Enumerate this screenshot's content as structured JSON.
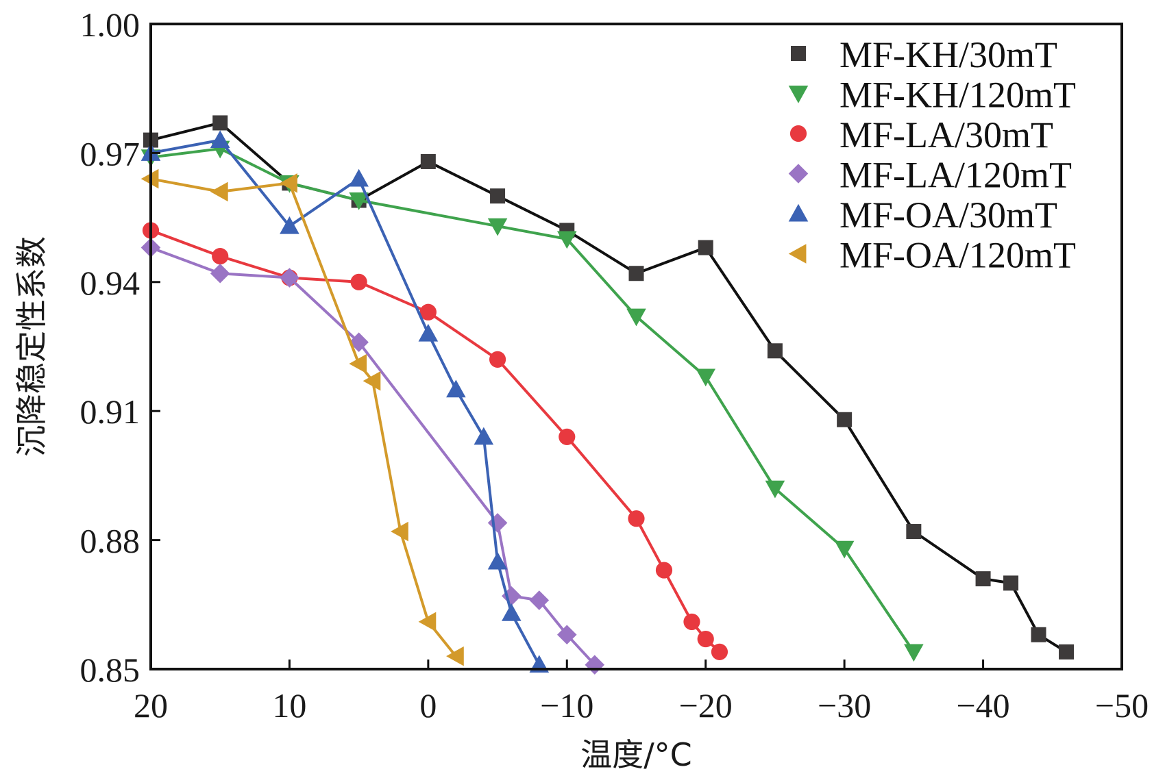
{
  "chart_data": {
    "type": "line",
    "title": "",
    "xlabel": "温度/°C",
    "ylabel": "沉降稳定性系数",
    "xlim": [
      20,
      -50
    ],
    "ylim": [
      0.85,
      1.0
    ],
    "x_ticks": [
      20,
      10,
      0,
      -10,
      -20,
      -30,
      -40,
      -50
    ],
    "x_tick_labels": [
      "20",
      "10",
      "0",
      "−10",
      "−20",
      "−30",
      "−40",
      "−50"
    ],
    "y_ticks": [
      0.85,
      0.88,
      0.91,
      0.94,
      0.97,
      1.0
    ],
    "y_tick_labels": [
      "0.85",
      "0.88",
      "0.91",
      "0.94",
      "0.97",
      "1.00"
    ],
    "grid": false,
    "legend_position": "top-right",
    "series": [
      {
        "name": "MF-KH/30mT",
        "color": "#3d3a3a",
        "line_color": "#111111",
        "marker": "square",
        "x": [
          20,
          15,
          10,
          5,
          0,
          -5,
          -10,
          -15,
          -20,
          -25,
          -30,
          -35,
          -40,
          -42,
          -44,
          -46
        ],
        "y": [
          0.973,
          0.977,
          0.963,
          0.959,
          0.968,
          0.96,
          0.952,
          0.942,
          0.948,
          0.924,
          0.908,
          0.882,
          0.871,
          0.87,
          0.858,
          0.854
        ]
      },
      {
        "name": "MF-KH/120mT",
        "color": "#3fa34d",
        "line_color": "#3fa34d",
        "marker": "triangle-down",
        "x": [
          20,
          15,
          10,
          5,
          -5,
          -10,
          -15,
          -20,
          -25,
          -30,
          -35
        ],
        "y": [
          0.969,
          0.971,
          0.963,
          0.959,
          0.953,
          0.95,
          0.932,
          0.918,
          0.892,
          0.878,
          0.854
        ]
      },
      {
        "name": "MF-LA/30mT",
        "color": "#e8393f",
        "line_color": "#e8393f",
        "marker": "circle",
        "x": [
          20,
          15,
          10,
          5,
          0,
          -5,
          -10,
          -15,
          -17,
          -19,
          -20,
          -21
        ],
        "y": [
          0.952,
          0.946,
          0.941,
          0.94,
          0.933,
          0.922,
          0.904,
          0.885,
          0.873,
          0.861,
          0.857,
          0.854
        ]
      },
      {
        "name": "MF-LA/120mT",
        "color": "#9a74c4",
        "line_color": "#9a74c4",
        "marker": "diamond",
        "x": [
          20,
          15,
          10,
          5,
          -5,
          -6,
          -8,
          -10,
          -12
        ],
        "y": [
          0.948,
          0.942,
          0.941,
          0.926,
          0.884,
          0.867,
          0.866,
          0.858,
          0.851
        ]
      },
      {
        "name": "MF-OA/30mT",
        "color": "#3b62b4",
        "line_color": "#3b62b4",
        "marker": "triangle-up",
        "x": [
          20,
          15,
          10,
          5,
          0,
          -2,
          -4,
          -5,
          -6,
          -8
        ],
        "y": [
          0.97,
          0.973,
          0.953,
          0.964,
          0.928,
          0.915,
          0.904,
          0.875,
          0.863,
          0.851
        ]
      },
      {
        "name": "MF-OA/120mT",
        "color": "#d39a2a",
        "line_color": "#d39a2a",
        "marker": "triangle-left",
        "x": [
          20,
          15,
          10,
          5,
          4,
          2,
          0,
          -2
        ],
        "y": [
          0.964,
          0.961,
          0.963,
          0.921,
          0.917,
          0.882,
          0.861,
          0.853
        ]
      }
    ]
  }
}
